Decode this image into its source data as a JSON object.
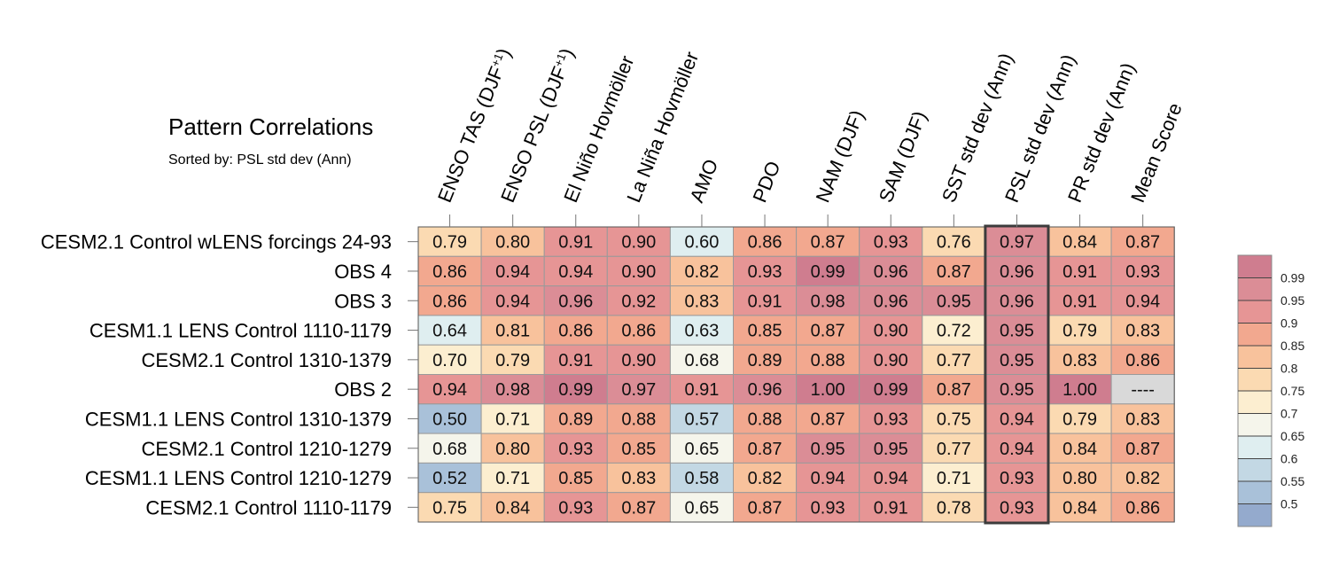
{
  "title": "Pattern Correlations",
  "subtitle": "Sorted by: PSL std dev (Ann)",
  "chart_data": {
    "type": "heatmap",
    "title": "Pattern Correlations",
    "subtitle": "Sorted by: PSL std dev (Ann)",
    "columns": [
      "ENSO TAS (DJF",
      "ENSO PSL (DJF",
      "El Niño Hovmöller",
      "La Niña Hovmöller",
      "AMO",
      "PDO",
      "NAM (DJF)",
      "SAM (DJF)",
      "SST std dev (Ann)",
      "PSL std dev (Ann)",
      "PR std dev (Ann)",
      "Mean Score"
    ],
    "column_superscripts": [
      "+1",
      "+1",
      "",
      "",
      "",
      "",
      "",
      "",
      "",
      "",
      "",
      ""
    ],
    "column_suffixes": [
      ")",
      ")",
      "",
      "",
      "",
      "",
      "",
      "",
      "",
      "",
      "",
      ""
    ],
    "rows": [
      "CESM2.1 Control wLENS forcings 24-93",
      "OBS 4",
      "OBS 3",
      "CESM1.1 LENS Control 1110-1179",
      "CESM2.1 Control 1310-1379",
      "OBS 2",
      "CESM1.1 LENS Control 1310-1379",
      "CESM2.1 Control 1210-1279",
      "CESM1.1 LENS Control 1210-1279",
      "CESM2.1 Control 1110-1179"
    ],
    "values": [
      [
        "0.79",
        "0.80",
        "0.91",
        "0.90",
        "0.60",
        "0.86",
        "0.87",
        "0.93",
        "0.76",
        "0.97",
        "0.84",
        "0.87"
      ],
      [
        "0.86",
        "0.94",
        "0.94",
        "0.90",
        "0.82",
        "0.93",
        "0.99",
        "0.96",
        "0.87",
        "0.96",
        "0.91",
        "0.93"
      ],
      [
        "0.86",
        "0.94",
        "0.96",
        "0.92",
        "0.83",
        "0.91",
        "0.98",
        "0.96",
        "0.95",
        "0.96",
        "0.91",
        "0.94"
      ],
      [
        "0.64",
        "0.81",
        "0.86",
        "0.86",
        "0.63",
        "0.85",
        "0.87",
        "0.90",
        "0.72",
        "0.95",
        "0.79",
        "0.83"
      ],
      [
        "0.70",
        "0.79",
        "0.91",
        "0.90",
        "0.68",
        "0.89",
        "0.88",
        "0.90",
        "0.77",
        "0.95",
        "0.83",
        "0.86"
      ],
      [
        "0.94",
        "0.98",
        "0.99",
        "0.97",
        "0.91",
        "0.96",
        "1.00",
        "0.99",
        "0.87",
        "0.95",
        "1.00",
        "----"
      ],
      [
        "0.50",
        "0.71",
        "0.89",
        "0.88",
        "0.57",
        "0.88",
        "0.87",
        "0.93",
        "0.75",
        "0.94",
        "0.79",
        "0.83"
      ],
      [
        "0.68",
        "0.80",
        "0.93",
        "0.85",
        "0.65",
        "0.87",
        "0.95",
        "0.95",
        "0.77",
        "0.94",
        "0.84",
        "0.87"
      ],
      [
        "0.52",
        "0.71",
        "0.85",
        "0.83",
        "0.58",
        "0.82",
        "0.94",
        "0.94",
        "0.71",
        "0.93",
        "0.80",
        "0.82"
      ],
      [
        "0.75",
        "0.84",
        "0.93",
        "0.87",
        "0.65",
        "0.87",
        "0.93",
        "0.91",
        "0.78",
        "0.93",
        "0.84",
        "0.86"
      ]
    ],
    "highlighted_column": "PSL std dev (Ann)",
    "missing_marker": "----",
    "colorbar": {
      "labels": [
        "0.99",
        "0.95",
        "0.9",
        "0.85",
        "0.8",
        "0.75",
        "0.7",
        "0.65",
        "0.6",
        "0.55",
        "0.5"
      ],
      "thresholds": [
        0.5,
        0.55,
        0.6,
        0.65,
        0.7,
        0.75,
        0.8,
        0.85,
        0.9,
        0.95,
        0.99
      ],
      "colors": [
        "#94aacd",
        "#a9c1d9",
        "#c3d8e4",
        "#dfeef0",
        "#f5f5eb",
        "#fceed0",
        "#fbdab2",
        "#f8c29c",
        "#f2a88f",
        "#e69595",
        "#db8d96",
        "#cf7d8f"
      ],
      "missing_color": "#d9d9d9"
    }
  }
}
